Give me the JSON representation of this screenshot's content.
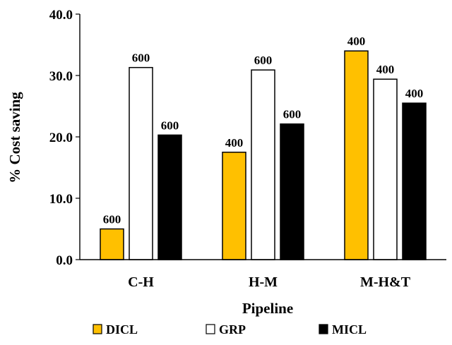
{
  "chart_data": {
    "type": "bar",
    "title": "",
    "xlabel": "Pipeline",
    "ylabel": "% Cost saving",
    "categories": [
      "C-H",
      "H-M",
      "M-H&T"
    ],
    "ylim": [
      0,
      40
    ],
    "yticks": [
      "0.0",
      "10.0",
      "20.0",
      "30.0",
      "40.0"
    ],
    "grid": false,
    "legend_position": "bottom",
    "series": [
      {
        "name": "DICL",
        "color": "#FFC000",
        "values": [
          5.0,
          17.5,
          34.0
        ],
        "labels": [
          "600",
          "400",
          "400"
        ]
      },
      {
        "name": "GRP",
        "color": "#FFFFFF",
        "values": [
          31.3,
          30.9,
          29.4
        ],
        "labels": [
          "600",
          "600",
          "400"
        ]
      },
      {
        "name": "MICL",
        "color": "#000000",
        "values": [
          20.3,
          22.1,
          25.5
        ],
        "labels": [
          "600",
          "600",
          "400"
        ]
      }
    ]
  }
}
